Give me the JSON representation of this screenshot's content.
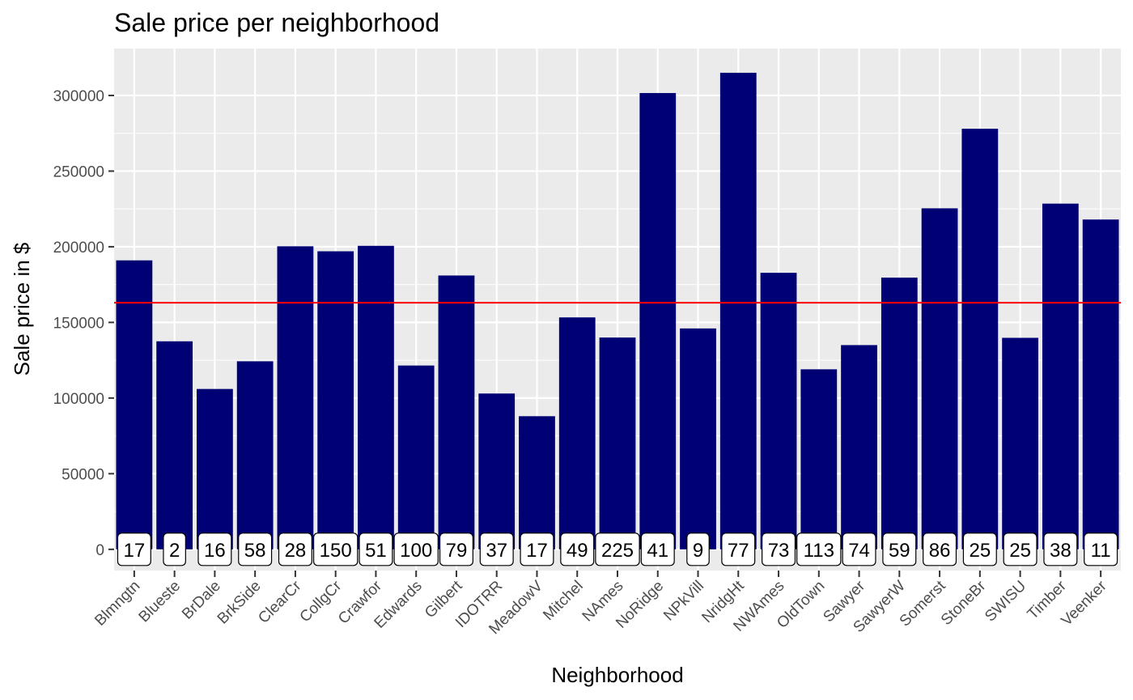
{
  "chart_data": {
    "type": "bar",
    "title": "Sale price per neighborhood",
    "xlabel": "Neighborhood",
    "ylabel": "Sale price in $",
    "ylim": [
      -14000,
      331000
    ],
    "yticks": [
      0,
      50000,
      100000,
      150000,
      200000,
      250000,
      300000
    ],
    "grid": true,
    "bar_color": "#000075",
    "panel_color": "#ebebeb",
    "reference_line": {
      "value": 163000,
      "color": "#ff0000"
    },
    "categories": [
      "Blmngtn",
      "Blueste",
      "BrDale",
      "BrkSide",
      "ClearCr",
      "CollgCr",
      "Crawfor",
      "Edwards",
      "Gilbert",
      "IDOTRR",
      "MeadowV",
      "Mitchel",
      "NAmes",
      "NoRidge",
      "NPkVill",
      "NridgHt",
      "NWAmes",
      "OldTown",
      "Sawyer",
      "SawyerW",
      "Somerst",
      "StoneBr",
      "SWISU",
      "Timber",
      "Veenker"
    ],
    "values": [
      191000,
      137500,
      106000,
      124300,
      200300,
      197000,
      200600,
      121500,
      181000,
      103000,
      88000,
      153300,
      140000,
      301600,
      146000,
      315000,
      182800,
      119000,
      135000,
      179600,
      225400,
      278000,
      139800,
      228500,
      218000
    ],
    "labels": [
      "17",
      "2",
      "16",
      "58",
      "28",
      "150",
      "51",
      "100",
      "79",
      "37",
      "17",
      "49",
      "225",
      "41",
      "9",
      "77",
      "73",
      "113",
      "74",
      "59",
      "86",
      "25",
      "25",
      "38",
      "11"
    ]
  }
}
